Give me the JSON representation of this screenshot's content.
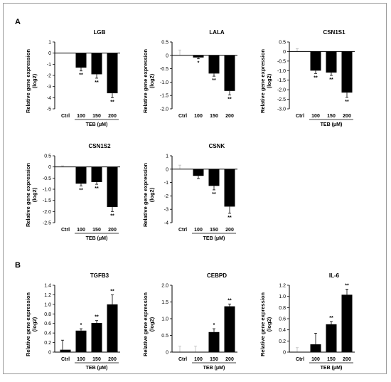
{
  "panels": [
    {
      "label": "A"
    },
    {
      "label": "B"
    }
  ],
  "chart_data": [
    {
      "type": "bar",
      "panel": "A",
      "title": "LGB",
      "ylabel_line1": "Relative gene expression",
      "ylabel_line2": "(log2)",
      "xlabel": "TEB (μM)",
      "categories": [
        "Ctrl",
        "100",
        "150",
        "200"
      ],
      "values": [
        0,
        -1.3,
        -1.9,
        -3.6
      ],
      "errors": [
        0,
        0.3,
        0.35,
        0.4
      ],
      "significance": [
        "",
        "**",
        "**",
        "**"
      ],
      "ylim": [
        -5,
        1
      ],
      "yticks": [
        1,
        0,
        -1,
        -2,
        -3,
        -4,
        -5
      ],
      "ytick_labels": [
        "1",
        "0",
        "-1",
        "-2",
        "-3",
        "-4",
        "-5"
      ]
    },
    {
      "type": "bar",
      "panel": "A",
      "title": "LALA",
      "ylabel_line1": "Relative gene expression",
      "ylabel_line2": "(log2)",
      "xlabel": "",
      "categories": [
        "Ctrl",
        "100",
        "150",
        "200"
      ],
      "values": [
        0,
        -0.08,
        -0.68,
        -1.33
      ],
      "errors": [
        0.2,
        0.05,
        0.1,
        0.15
      ],
      "significance": [
        "",
        "*",
        "**",
        "**"
      ],
      "ylim": [
        -2,
        0.5
      ],
      "yticks": [
        0.5,
        0,
        -0.5,
        -1,
        -1.5,
        -2
      ],
      "ytick_labels": [
        "0.5",
        "0",
        "-0.5",
        "-1.0",
        "-1.5",
        "-2.0"
      ]
    },
    {
      "type": "bar",
      "panel": "A",
      "title": "CSN1S1",
      "ylabel_line1": "Relative gene expression",
      "ylabel_line2": "(log2)",
      "xlabel": "TEB (μM)",
      "categories": [
        "Ctrl",
        "100",
        "150",
        "200"
      ],
      "values": [
        0,
        -1.0,
        -1.1,
        -2.15
      ],
      "errors": [
        0.15,
        0.15,
        0.15,
        0.25
      ],
      "significance": [
        "",
        "**",
        "**",
        "**"
      ],
      "ylim": [
        -3,
        0.5
      ],
      "yticks": [
        0.5,
        0,
        -0.5,
        -1,
        -1.5,
        -2,
        -2.5,
        -3
      ],
      "ytick_labels": [
        "0.5",
        "0",
        "-0.5",
        "-1.0",
        "-1.5",
        "-2.0",
        "-2.5",
        "-3.0"
      ]
    },
    {
      "type": "bar",
      "panel": "A",
      "title": "CSN1S2",
      "ylabel_line1": "Relative gene expression",
      "ylabel_line2": "(log2)",
      "xlabel": "TEB (μM)",
      "categories": [
        "Ctrl",
        "100",
        "150",
        "200"
      ],
      "values": [
        0,
        -0.75,
        -0.68,
        -1.8
      ],
      "errors": [
        0.05,
        0.1,
        0.1,
        0.2
      ],
      "significance": [
        "",
        "**",
        "**",
        "**"
      ],
      "ylim": [
        -2.5,
        0.5
      ],
      "yticks": [
        0.5,
        0,
        -0.5,
        -1,
        -1.5,
        -2,
        -2.5
      ],
      "ytick_labels": [
        "0.5",
        "0",
        "-0.5",
        "-1.0",
        "-1.5",
        "-2.0",
        "-2.5"
      ]
    },
    {
      "type": "bar",
      "panel": "A",
      "title": "CSNK",
      "ylabel_line1": "Relative gene expression",
      "ylabel_line2": "(log2)",
      "xlabel": "TEB (μM)",
      "categories": [
        "Ctrl",
        "100",
        "150",
        "200"
      ],
      "values": [
        0,
        -0.5,
        -1.25,
        -2.8
      ],
      "errors": [
        0.3,
        0.2,
        0.3,
        0.5
      ],
      "significance": [
        "",
        "",
        "**",
        "**"
      ],
      "ylim": [
        -4,
        1
      ],
      "yticks": [
        1,
        0,
        -1,
        -2,
        -3,
        -4
      ],
      "ytick_labels": [
        "1",
        "0",
        "-1",
        "-2",
        "-3",
        "-4"
      ]
    },
    {
      "type": "bar",
      "panel": "B",
      "title": "TGFB3",
      "ylabel_line1": "Relative gene expression",
      "ylabel_line2": "(log2)",
      "xlabel": "TEB (μM)",
      "categories": [
        "Ctrl",
        "100",
        "150",
        "200"
      ],
      "values": [
        0.05,
        0.45,
        0.61,
        1.0
      ],
      "errors": [
        0.2,
        0.04,
        0.05,
        0.2
      ],
      "significance": [
        "",
        "*",
        "**",
        "**"
      ],
      "ylim": [
        0,
        1.4
      ],
      "yticks": [
        0,
        0.2,
        0.4,
        0.6,
        0.8,
        1.0,
        1.2,
        1.4
      ],
      "ytick_labels": [
        "0",
        "0.2",
        "0.4",
        "0.6",
        "0.8",
        "1.0",
        "1.2",
        "1.4"
      ]
    },
    {
      "type": "bar",
      "panel": "B",
      "title": "CEBPD",
      "ylabel_line1": "Relative gene expression",
      "ylabel_line2": "(log2)",
      "xlabel": "TEB (μM)",
      "categories": [
        "Ctrl",
        "100",
        "150",
        "200"
      ],
      "values": [
        0,
        0,
        0.6,
        1.37
      ],
      "errors": [
        0.18,
        0.18,
        0.1,
        0.07
      ],
      "significance": [
        "",
        "",
        "*",
        "**"
      ],
      "ylim": [
        0,
        2
      ],
      "yticks": [
        0,
        0.5,
        1,
        1.5,
        2
      ],
      "ytick_labels": [
        "0",
        "0.5",
        "1.0",
        "1.5",
        "2.0"
      ]
    },
    {
      "type": "bar",
      "panel": "B",
      "title": "IL-6",
      "ylabel_line1": "Relative gene expression",
      "ylabel_line2": "(log2)",
      "xlabel": "TEB (μM)",
      "categories": [
        "Ctrl",
        "100",
        "150",
        "200"
      ],
      "values": [
        0,
        0.14,
        0.5,
        1.03
      ],
      "errors": [
        0.08,
        0.2,
        0.05,
        0.1
      ],
      "significance": [
        "",
        "",
        "**",
        "**"
      ],
      "ylim": [
        0,
        1.2
      ],
      "yticks": [
        0,
        0.2,
        0.4,
        0.6,
        0.8,
        1.0,
        1.2
      ],
      "ytick_labels": [
        "0",
        "0.2",
        "0.4",
        "0.6",
        "0.8",
        "1.0",
        "1.2"
      ]
    }
  ]
}
